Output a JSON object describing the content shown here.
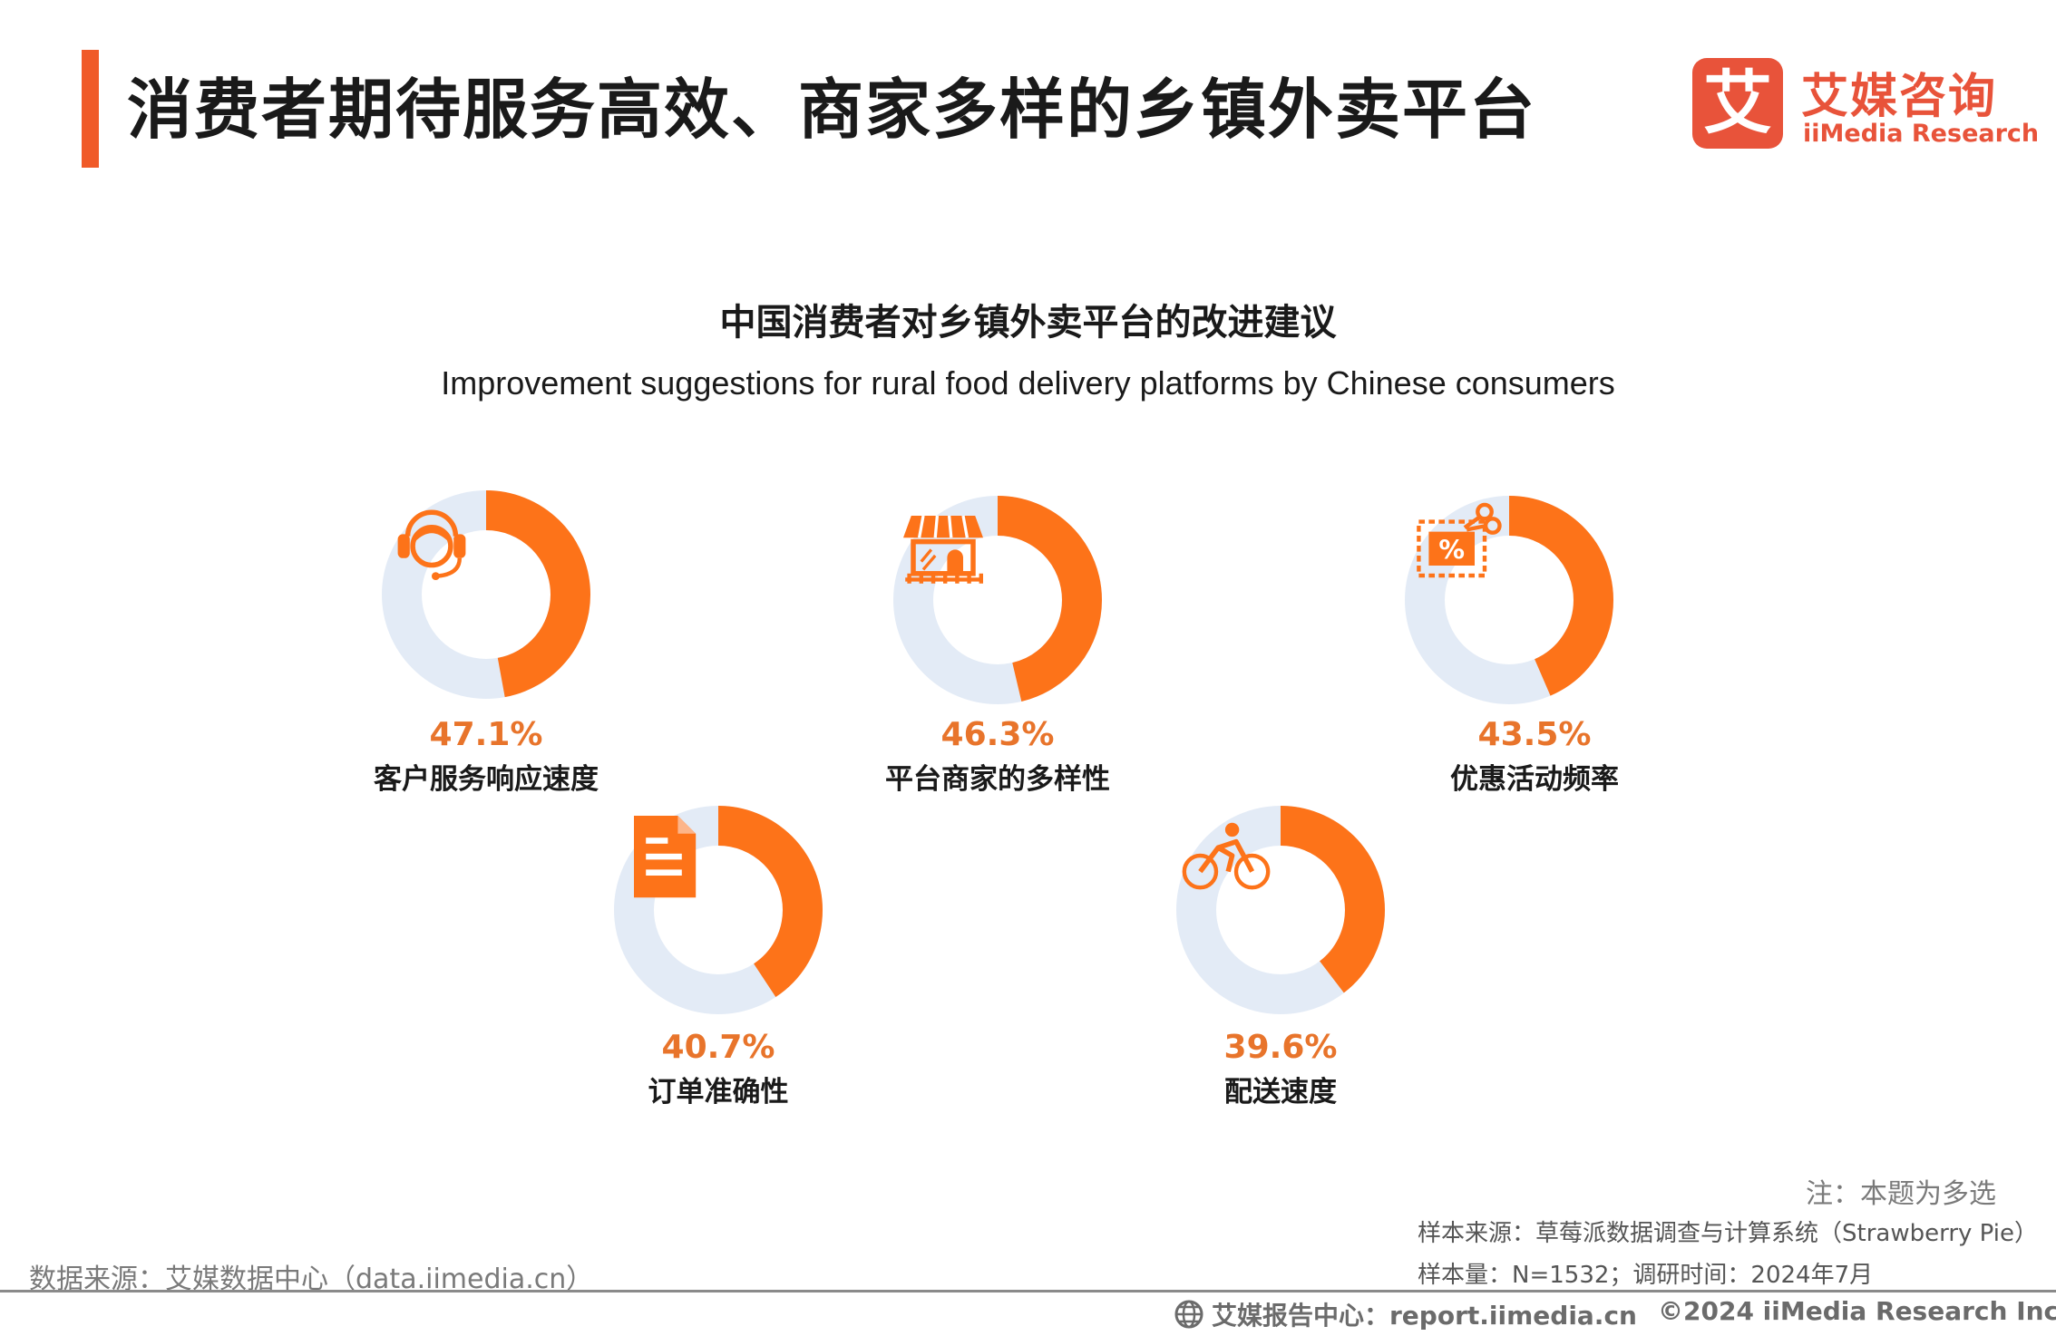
{
  "header": {
    "title": "消费者期待服务高效、商家多样的乡镇外卖平台",
    "logo_mark": "艾",
    "logo_cn": "艾媒咨询",
    "logo_en": "iiMedia Research",
    "accent_color": "#f05a28"
  },
  "chart_data": {
    "type": "donut",
    "title": "中国消费者对乡镇外卖平台的改进建议",
    "subtitle": "Improvement suggestions for rural food delivery platforms by Chinese consumers",
    "unit": "%",
    "colors": {
      "value": "#fd7319",
      "remainder": "#e3ebf6",
      "percent_text": "#e8742b"
    },
    "items": [
      {
        "label": "客户服务响应速度",
        "value": 47.1,
        "display": "47.1%",
        "icon": "headset-icon"
      },
      {
        "label": "平台商家的多样性",
        "value": 46.3,
        "display": "46.3%",
        "icon": "storefront-icon"
      },
      {
        "label": "优惠活动频率",
        "value": 43.5,
        "display": "43.5%",
        "icon": "coupon-icon"
      },
      {
        "label": "订单准确性",
        "value": 40.7,
        "display": "40.7%",
        "icon": "document-icon"
      },
      {
        "label": "配送速度",
        "value": 39.6,
        "display": "39.6%",
        "icon": "cyclist-icon"
      }
    ]
  },
  "footer": {
    "note": "注：本题为多选",
    "sample_source": "样本来源：草莓派数据调查与计算系统（Strawberry Pie）",
    "sample_size": "样本量：N=1532；调研时间：2024年7月",
    "data_source": "数据来源：艾媒数据中心（data.iimedia.cn）",
    "report_center": "艾媒报告中心：report.iimedia.cn",
    "copyright": "©2024  iiMedia Research  Inc"
  }
}
